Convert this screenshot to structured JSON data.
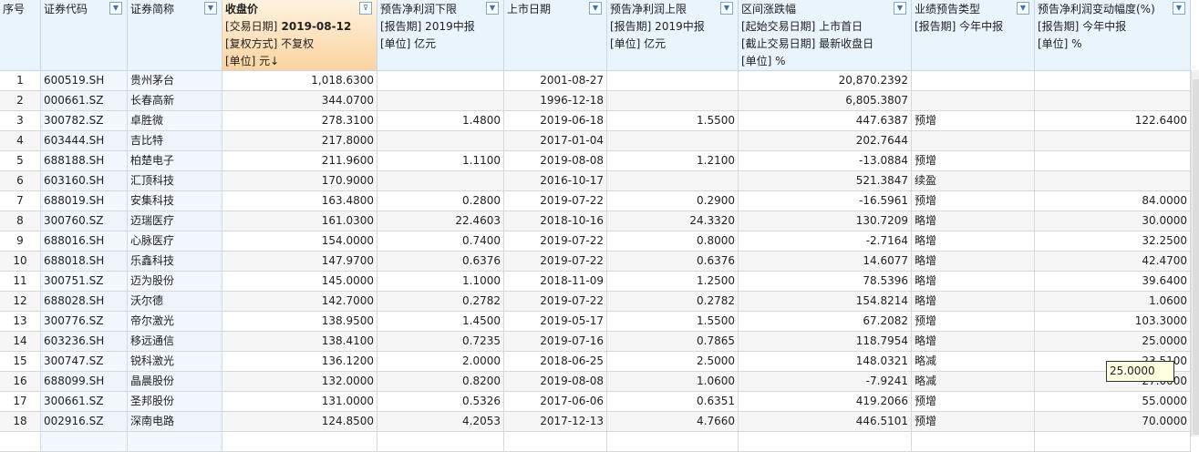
{
  "headers": [
    {
      "lines": [
        "序号"
      ]
    },
    {
      "lines": [
        "证券代码"
      ]
    },
    {
      "lines": [
        "证券简称"
      ]
    },
    {
      "lines": [
        "收盘价",
        "[交易日期] 2019-08-12",
        "[复权方式] 不复权",
        "[单位] 元↓"
      ],
      "sorted": true
    },
    {
      "lines": [
        "预告净利润下限",
        "[报告期] 2019中报",
        "[单位] 亿元"
      ]
    },
    {
      "lines": [
        "上市日期"
      ]
    },
    {
      "lines": [
        "预告净利润上限",
        "[报告期] 2019中报",
        "[单位] 亿元"
      ]
    },
    {
      "lines": [
        "区间涨跌幅",
        "[起始交易日期] 上市首日",
        "[截止交易日期] 最新收盘日",
        "[单位] %"
      ]
    },
    {
      "lines": [
        "业绩预告类型",
        "[报告期] 今年中报"
      ]
    },
    {
      "lines": [
        "预告净利润变动幅度(%)",
        "[报告期] 今年中报",
        "[单位] %"
      ]
    }
  ],
  "icons": {
    "dropdown": "dropdown-arrow-icon",
    "filter": "filter-icon"
  },
  "rows": [
    [
      "1",
      "600519.SH",
      "贵州茅台",
      "1,018.6300",
      "",
      "2001-08-27",
      "",
      "20,870.2392",
      "",
      ""
    ],
    [
      "2",
      "000661.SZ",
      "长春高新",
      "344.0700",
      "",
      "1996-12-18",
      "",
      "6,805.3807",
      "",
      ""
    ],
    [
      "3",
      "300782.SZ",
      "卓胜微",
      "278.3100",
      "1.4800",
      "2019-06-18",
      "1.5500",
      "447.6387",
      "预增",
      "122.6400"
    ],
    [
      "4",
      "603444.SH",
      "吉比特",
      "217.8000",
      "",
      "2017-01-04",
      "",
      "202.7644",
      "",
      ""
    ],
    [
      "5",
      "688188.SH",
      "柏楚电子",
      "211.9600",
      "1.1100",
      "2019-08-08",
      "1.2100",
      "-13.0884",
      "预增",
      ""
    ],
    [
      "6",
      "603160.SH",
      "汇顶科技",
      "170.9000",
      "",
      "2016-10-17",
      "",
      "521.3847",
      "续盈",
      ""
    ],
    [
      "7",
      "688019.SH",
      "安集科技",
      "163.4800",
      "0.2800",
      "2019-07-22",
      "0.2900",
      "-16.5961",
      "预增",
      "84.0000"
    ],
    [
      "8",
      "300760.SZ",
      "迈瑞医疗",
      "161.0300",
      "22.4603",
      "2018-10-16",
      "24.3320",
      "130.7209",
      "略增",
      "30.0000"
    ],
    [
      "9",
      "688016.SH",
      "心脉医疗",
      "154.0000",
      "0.7400",
      "2019-07-22",
      "0.8000",
      "-2.7164",
      "略增",
      "32.2500"
    ],
    [
      "10",
      "688018.SH",
      "乐鑫科技",
      "147.9700",
      "0.6376",
      "2019-07-22",
      "0.6376",
      "14.6077",
      "略增",
      "42.4700"
    ],
    [
      "11",
      "300751.SZ",
      "迈为股份",
      "145.0000",
      "1.1000",
      "2018-11-09",
      "1.2500",
      "78.5396",
      "略增",
      "39.6400"
    ],
    [
      "12",
      "688028.SH",
      "沃尔德",
      "142.7000",
      "0.2782",
      "2019-07-22",
      "0.2782",
      "154.8214",
      "略增",
      "1.0600"
    ],
    [
      "13",
      "300776.SZ",
      "帝尔激光",
      "138.9500",
      "1.4500",
      "2019-05-17",
      "1.5500",
      "67.2082",
      "预增",
      "103.3000"
    ],
    [
      "14",
      "603236.SH",
      "移远通信",
      "138.4100",
      "0.7235",
      "2019-07-16",
      "0.7865",
      "118.7954",
      "略增",
      "25.0000"
    ],
    [
      "15",
      "300747.SZ",
      "锐科激光",
      "136.1200",
      "2.0000",
      "2018-06-25",
      "2.5000",
      "148.0321",
      "略减",
      "-23.5100"
    ],
    [
      "16",
      "688099.SH",
      "晶晨股份",
      "132.0000",
      "0.8200",
      "2019-08-08",
      "1.0600",
      "-7.9241",
      "略减",
      "-27.0000"
    ],
    [
      "17",
      "300661.SZ",
      "圣邦股份",
      "131.0000",
      "0.5326",
      "2017-06-06",
      "0.6351",
      "419.2066",
      "预增",
      "55.0000"
    ],
    [
      "18",
      "002916.SZ",
      "深南电路",
      "124.8500",
      "4.2053",
      "2017-12-13",
      "4.7660",
      "446.5101",
      "预增",
      "70.0000"
    ]
  ],
  "tooltip": "25.0000"
}
